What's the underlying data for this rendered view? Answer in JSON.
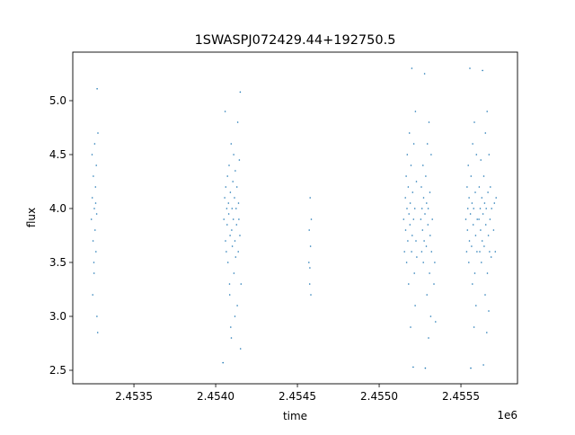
{
  "chart_data": {
    "type": "scatter",
    "title": "1SWASPJ072429.44+192750.5",
    "xlabel": "time",
    "ylabel": "flux",
    "x_offset_label": "1e6",
    "xlim": [
      2453126,
      2455846
    ],
    "ylim": [
      2.375,
      5.45
    ],
    "x_ticks": [
      2453500,
      2454000,
      2454500,
      2455000,
      2455500
    ],
    "x_tick_labels": [
      "2.4535",
      "2.4540",
      "2.4545",
      "2.4550",
      "2.4555"
    ],
    "y_ticks": [
      2.5,
      3.0,
      3.5,
      4.0,
      4.5,
      5.0
    ],
    "y_tick_labels": [
      "2.5",
      "3.0",
      "3.5",
      "4.0",
      "4.5",
      "5.0"
    ],
    "grid": false,
    "color": "#1f77b4",
    "points": [
      [
        2453240,
        3.9
      ],
      [
        2453245,
        4.1
      ],
      [
        2453250,
        3.7
      ],
      [
        2453252,
        4.3
      ],
      [
        2453255,
        3.5
      ],
      [
        2453258,
        4.0
      ],
      [
        2453260,
        4.6
      ],
      [
        2453262,
        3.8
      ],
      [
        2453265,
        4.2
      ],
      [
        2453268,
        3.6
      ],
      [
        2453270,
        4.4
      ],
      [
        2453272,
        3.95
      ],
      [
        2453275,
        5.11
      ],
      [
        2453278,
        2.85
      ],
      [
        2453280,
        4.7
      ],
      [
        2453248,
        3.2
      ],
      [
        2453256,
        3.4
      ],
      [
        2453266,
        4.05
      ],
      [
        2453244,
        4.5
      ],
      [
        2453274,
        3.0
      ],
      [
        2454050,
        3.9
      ],
      [
        2454055,
        4.1
      ],
      [
        2454060,
        3.7
      ],
      [
        2454062,
        4.2
      ],
      [
        2454065,
        3.6
      ],
      [
        2454068,
        4.0
      ],
      [
        2454070,
        3.85
      ],
      [
        2454072,
        4.3
      ],
      [
        2454075,
        3.5
      ],
      [
        2454078,
        4.05
      ],
      [
        2454080,
        3.95
      ],
      [
        2454082,
        4.4
      ],
      [
        2454085,
        3.3
      ],
      [
        2454088,
        3.75
      ],
      [
        2454090,
        4.15
      ],
      [
        2454092,
        2.9
      ],
      [
        2454095,
        4.6
      ],
      [
        2454098,
        3.8
      ],
      [
        2454100,
        4.0
      ],
      [
        2454102,
        3.65
      ],
      [
        2454105,
        4.25
      ],
      [
        2454108,
        3.9
      ],
      [
        2454110,
        4.5
      ],
      [
        2454112,
        3.4
      ],
      [
        2454115,
        4.1
      ],
      [
        2454118,
        3.7
      ],
      [
        2454120,
        4.35
      ],
      [
        2454122,
        3.55
      ],
      [
        2454125,
        4.0
      ],
      [
        2454128,
        3.85
      ],
      [
        2454130,
        4.2
      ],
      [
        2454132,
        3.1
      ],
      [
        2454135,
        4.8
      ],
      [
        2454138,
        3.6
      ],
      [
        2454140,
        4.05
      ],
      [
        2454142,
        3.9
      ],
      [
        2454145,
        4.45
      ],
      [
        2454148,
        3.75
      ],
      [
        2454150,
        5.08
      ],
      [
        2454152,
        2.7
      ],
      [
        2454155,
        3.3
      ],
      [
        2454045,
        2.57
      ],
      [
        2454058,
        4.9
      ],
      [
        2454086,
        3.2
      ],
      [
        2454118,
        3.0
      ],
      [
        2454096,
        2.8
      ],
      [
        2454570,
        3.5
      ],
      [
        2454572,
        3.8
      ],
      [
        2454575,
        3.3
      ],
      [
        2454578,
        4.1
      ],
      [
        2454580,
        3.65
      ],
      [
        2454582,
        3.2
      ],
      [
        2454585,
        3.9
      ],
      [
        2454576,
        3.45
      ],
      [
        2455150,
        3.9
      ],
      [
        2455155,
        3.6
      ],
      [
        2455160,
        4.1
      ],
      [
        2455162,
        3.8
      ],
      [
        2455165,
        4.3
      ],
      [
        2455168,
        3.5
      ],
      [
        2455170,
        4.0
      ],
      [
        2455172,
        4.5
      ],
      [
        2455175,
        3.7
      ],
      [
        2455178,
        4.2
      ],
      [
        2455180,
        3.3
      ],
      [
        2455182,
        3.95
      ],
      [
        2455185,
        4.7
      ],
      [
        2455188,
        3.85
      ],
      [
        2455190,
        4.05
      ],
      [
        2455192,
        2.9
      ],
      [
        2455195,
        4.4
      ],
      [
        2455198,
        3.6
      ],
      [
        2455200,
        5.3
      ],
      [
        2455202,
        3.75
      ],
      [
        2455205,
        4.15
      ],
      [
        2455208,
        2.53
      ],
      [
        2455210,
        3.9
      ],
      [
        2455212,
        4.6
      ],
      [
        2455215,
        3.4
      ],
      [
        2455218,
        4.0
      ],
      [
        2455220,
        3.1
      ],
      [
        2455222,
        4.9
      ],
      [
        2455225,
        3.7
      ],
      [
        2455228,
        4.25
      ],
      [
        2455230,
        3.55
      ],
      [
        2455255,
        3.9
      ],
      [
        2455258,
        4.2
      ],
      [
        2455260,
        3.6
      ],
      [
        2455262,
        4.0
      ],
      [
        2455265,
        3.8
      ],
      [
        2455268,
        4.4
      ],
      [
        2455270,
        3.5
      ],
      [
        2455272,
        4.1
      ],
      [
        2455275,
        3.7
      ],
      [
        2455278,
        5.25
      ],
      [
        2455280,
        3.95
      ],
      [
        2455282,
        2.52
      ],
      [
        2455285,
        4.3
      ],
      [
        2455288,
        3.65
      ],
      [
        2455290,
        4.05
      ],
      [
        2455292,
        3.2
      ],
      [
        2455295,
        4.6
      ],
      [
        2455298,
        3.85
      ],
      [
        2455300,
        4.0
      ],
      [
        2455302,
        2.8
      ],
      [
        2455305,
        4.8
      ],
      [
        2455308,
        3.4
      ],
      [
        2455310,
        4.15
      ],
      [
        2455312,
        3.75
      ],
      [
        2455315,
        3.0
      ],
      [
        2455318,
        4.5
      ],
      [
        2455320,
        3.6
      ],
      [
        2455325,
        3.9
      ],
      [
        2455340,
        3.5
      ],
      [
        2455345,
        2.95
      ],
      [
        2455335,
        3.3
      ],
      [
        2455530,
        3.9
      ],
      [
        2455535,
        3.6
      ],
      [
        2455538,
        4.2
      ],
      [
        2455540,
        3.8
      ],
      [
        2455542,
        4.0
      ],
      [
        2455545,
        4.4
      ],
      [
        2455548,
        3.5
      ],
      [
        2455550,
        4.1
      ],
      [
        2455552,
        3.7
      ],
      [
        2455555,
        5.3
      ],
      [
        2455558,
        3.95
      ],
      [
        2455560,
        2.52
      ],
      [
        2455562,
        4.3
      ],
      [
        2455565,
        3.65
      ],
      [
        2455568,
        4.05
      ],
      [
        2455570,
        3.3
      ],
      [
        2455572,
        4.6
      ],
      [
        2455575,
        3.85
      ],
      [
        2455578,
        4.0
      ],
      [
        2455580,
        2.9
      ],
      [
        2455582,
        4.8
      ],
      [
        2455585,
        3.4
      ],
      [
        2455588,
        4.15
      ],
      [
        2455590,
        3.75
      ],
      [
        2455592,
        3.1
      ],
      [
        2455595,
        4.5
      ],
      [
        2455598,
        3.6
      ],
      [
        2455600,
        3.9
      ],
      [
        2455610,
        3.9
      ],
      [
        2455612,
        4.2
      ],
      [
        2455615,
        3.6
      ],
      [
        2455618,
        4.0
      ],
      [
        2455620,
        3.8
      ],
      [
        2455622,
        4.45
      ],
      [
        2455625,
        3.5
      ],
      [
        2455628,
        4.1
      ],
      [
        2455630,
        3.7
      ],
      [
        2455632,
        5.28
      ],
      [
        2455635,
        3.95
      ],
      [
        2455638,
        2.55
      ],
      [
        2455640,
        4.3
      ],
      [
        2455642,
        3.65
      ],
      [
        2455645,
        4.05
      ],
      [
        2455648,
        3.2
      ],
      [
        2455650,
        4.7
      ],
      [
        2455652,
        3.85
      ],
      [
        2455655,
        4.0
      ],
      [
        2455658,
        2.85
      ],
      [
        2455660,
        4.9
      ],
      [
        2455662,
        3.4
      ],
      [
        2455665,
        4.15
      ],
      [
        2455668,
        3.75
      ],
      [
        2455670,
        3.05
      ],
      [
        2455672,
        4.5
      ],
      [
        2455675,
        3.6
      ],
      [
        2455678,
        3.9
      ],
      [
        2455680,
        4.2
      ],
      [
        2455685,
        3.55
      ],
      [
        2455688,
        4.0
      ],
      [
        2455700,
        3.8
      ],
      [
        2455705,
        4.05
      ],
      [
        2455710,
        3.6
      ],
      [
        2455715,
        4.1
      ]
    ]
  }
}
